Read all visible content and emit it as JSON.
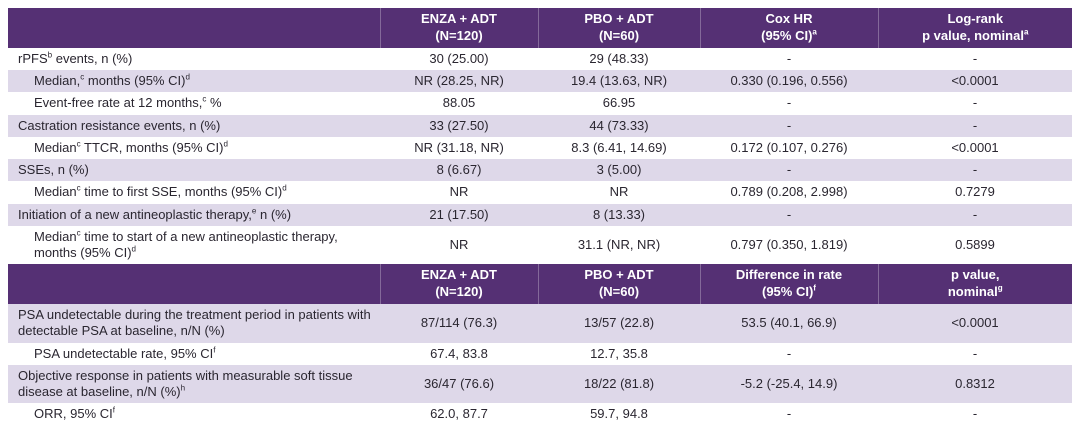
{
  "colors": {
    "header_bg": "#553074",
    "shaded_row_bg": "#ded8e9",
    "plain_row_bg": "#ffffff",
    "header_text": "#ffffff",
    "body_text": "#2a2630",
    "bottom_border": "#553074"
  },
  "table": {
    "sections": [
      {
        "header": [
          "",
          "ENZA + ADT\n(N=120)",
          "PBO + ADT\n(N=60)",
          "Cox HR\n(95% CI)^a",
          "Log-rank\np value, nominal^a"
        ],
        "rows": [
          {
            "label": "rPFS^b events, n (%)",
            "indent": false,
            "shaded": false,
            "cells": [
              "30 (25.00)",
              "29 (48.33)",
              "-",
              "-"
            ]
          },
          {
            "label": "Median,^c months (95% CI)^d",
            "indent": true,
            "shaded": true,
            "cells": [
              "NR (28.25, NR)",
              "19.4 (13.63, NR)",
              "0.330 (0.196, 0.556)",
              "<0.0001"
            ]
          },
          {
            "label": "Event-free rate at 12 months,^c %",
            "indent": true,
            "shaded": false,
            "cells": [
              "88.05",
              "66.95",
              "-",
              "-"
            ]
          },
          {
            "label": "Castration resistance events, n (%)",
            "indent": false,
            "shaded": true,
            "cells": [
              "33 (27.50)",
              "44 (73.33)",
              "-",
              "-"
            ]
          },
          {
            "label": "Median^c TTCR, months (95% CI)^d",
            "indent": true,
            "shaded": false,
            "cells": [
              "NR (31.18, NR)",
              "8.3 (6.41, 14.69)",
              "0.172 (0.107, 0.276)",
              "<0.0001"
            ]
          },
          {
            "label": "SSEs, n (%)",
            "indent": false,
            "shaded": true,
            "cells": [
              "8 (6.67)",
              "3 (5.00)",
              "-",
              "-"
            ]
          },
          {
            "label": "Median^c time to first SSE, months (95% CI)^d",
            "indent": true,
            "shaded": false,
            "cells": [
              "NR",
              "NR",
              "0.789 (0.208, 2.998)",
              "0.7279"
            ]
          },
          {
            "label": "Initiation of a new antineoplastic therapy,^e n (%)",
            "indent": false,
            "shaded": true,
            "cells": [
              "21 (17.50)",
              "8 (13.33)",
              "-",
              "-"
            ]
          },
          {
            "label": "Median^c time to start of a new antineoplastic therapy, months (95% CI)^d",
            "indent": true,
            "shaded": false,
            "cells": [
              "NR",
              "31.1 (NR, NR)",
              "0.797 (0.350, 1.819)",
              "0.5899"
            ]
          }
        ]
      },
      {
        "header": [
          "",
          "ENZA + ADT\n(N=120)",
          "PBO + ADT\n(N=60)",
          "Difference in rate\n(95% CI)^f",
          "p value,\nnominal^g"
        ],
        "rows": [
          {
            "label": "PSA undetectable during the treatment period in patients with detectable PSA at baseline, n/N (%)",
            "indent": false,
            "shaded": true,
            "cells": [
              "87/114 (76.3)",
              "13/57 (22.8)",
              "53.5 (40.1, 66.9)",
              "<0.0001"
            ]
          },
          {
            "label": "PSA undetectable rate, 95% CI^f",
            "indent": true,
            "shaded": false,
            "cells": [
              "67.4, 83.8",
              "12.7, 35.8",
              "-",
              "-"
            ]
          },
          {
            "label": "Objective response in patients with measurable soft tissue disease at baseline, n/N (%)^h",
            "indent": false,
            "shaded": true,
            "cells": [
              "36/47 (76.6)",
              "18/22 (81.8)",
              "-5.2 (-25.4, 14.9)",
              "0.8312"
            ]
          },
          {
            "label": "ORR, 95% CI^f",
            "indent": true,
            "shaded": false,
            "cells": [
              "62.0, 87.7",
              "59.7, 94.8",
              "-",
              "-"
            ]
          }
        ]
      }
    ]
  }
}
